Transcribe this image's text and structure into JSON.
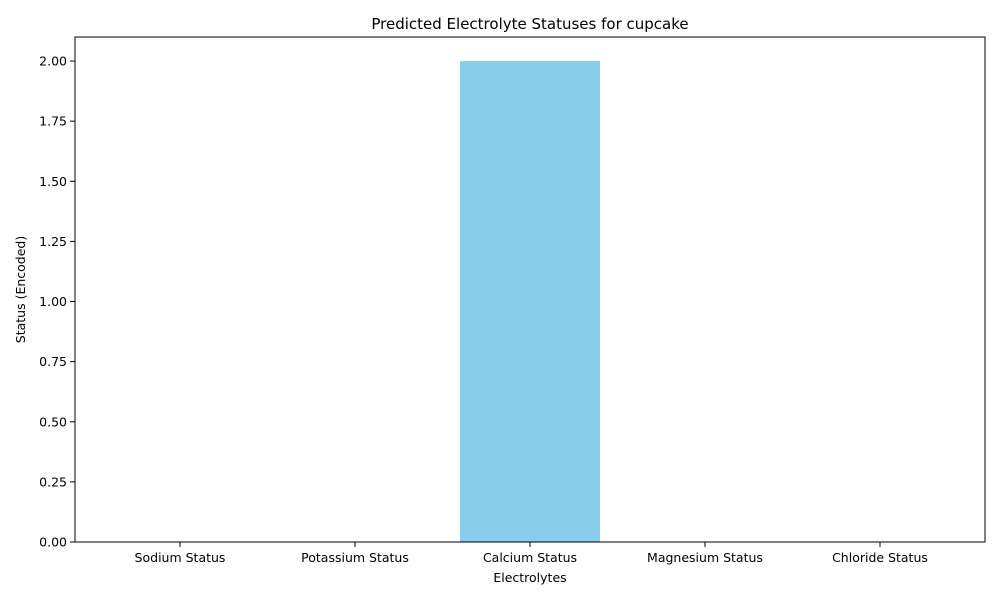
{
  "chart_data": {
    "type": "bar",
    "title": "Predicted Electrolyte Statuses for cupcake",
    "xlabel": "Electrolytes",
    "ylabel": "Status (Encoded)",
    "categories": [
      "Sodium Status",
      "Potassium Status",
      "Calcium Status",
      "Magnesium Status",
      "Chloride Status"
    ],
    "values": [
      0,
      0,
      2,
      0,
      0
    ],
    "ylim": [
      0,
      2.1
    ],
    "yticks": [
      "0.00",
      "0.25",
      "0.50",
      "0.75",
      "1.00",
      "1.25",
      "1.50",
      "1.75",
      "2.00"
    ],
    "grid": false,
    "bar_color": "#87CEEB"
  }
}
